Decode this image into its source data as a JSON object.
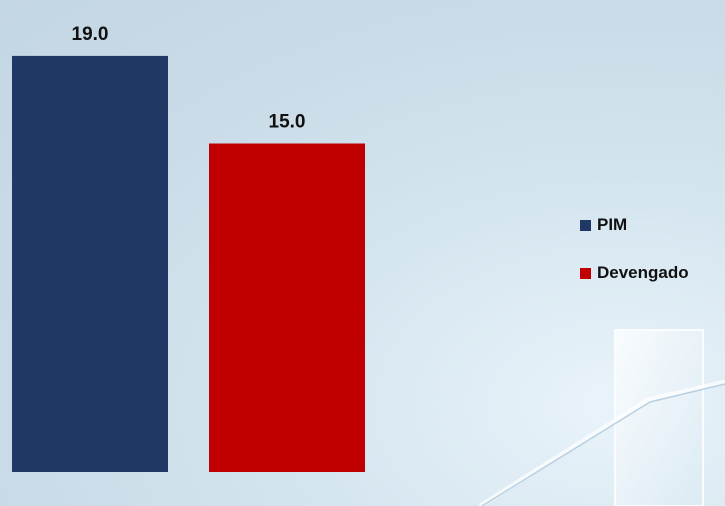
{
  "chart_data": {
    "type": "bar",
    "categories": [
      ""
    ],
    "series": [
      {
        "name": "PIM",
        "values": [
          19.0
        ],
        "color": "#1f3864"
      },
      {
        "name": "Devengado",
        "values": [
          15.0
        ],
        "color": "#c00000"
      }
    ],
    "value_labels": [
      "19.0",
      "15.0"
    ],
    "ylim": [
      0,
      20
    ],
    "grid": false,
    "legend_position": "right"
  }
}
